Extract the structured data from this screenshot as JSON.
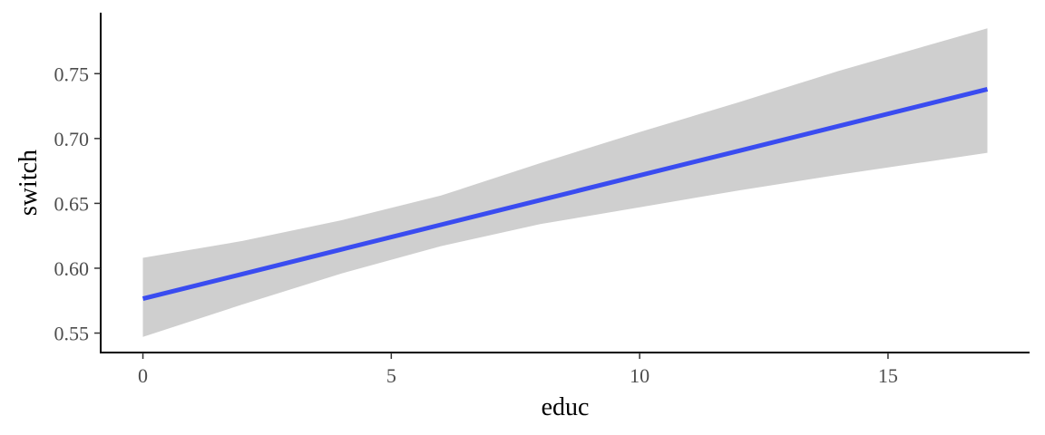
{
  "chart_data": {
    "type": "line",
    "title": "",
    "xlabel": "educ",
    "ylabel": "switch",
    "xlim": [
      -0.85,
      17.85
    ],
    "ylim": [
      0.535,
      0.797
    ],
    "x_ticks": [
      0,
      5,
      10,
      15
    ],
    "x_tick_labels": [
      "0",
      "5",
      "10",
      "15"
    ],
    "y_ticks": [
      0.55,
      0.6,
      0.65,
      0.7,
      0.75
    ],
    "y_tick_labels": [
      "0.55",
      "0.60",
      "0.65",
      "0.70",
      "0.75"
    ],
    "grid": false,
    "legend": "none",
    "series": [
      {
        "x": [
          0,
          2,
          4,
          6,
          8,
          10,
          12,
          14,
          17
        ],
        "y": [
          0.5765,
          0.5955,
          0.6145,
          0.6335,
          0.6525,
          0.6715,
          0.6905,
          0.7095,
          0.738
        ],
        "ci_lower": [
          0.547,
          0.572,
          0.596,
          0.617,
          0.634,
          0.647,
          0.66,
          0.672,
          0.689
        ],
        "ci_upper": [
          0.608,
          0.621,
          0.637,
          0.656,
          0.681,
          0.705,
          0.728,
          0.752,
          0.785
        ],
        "color": "#3a4cf0",
        "band_color": "#cfcfcf"
      }
    ]
  }
}
